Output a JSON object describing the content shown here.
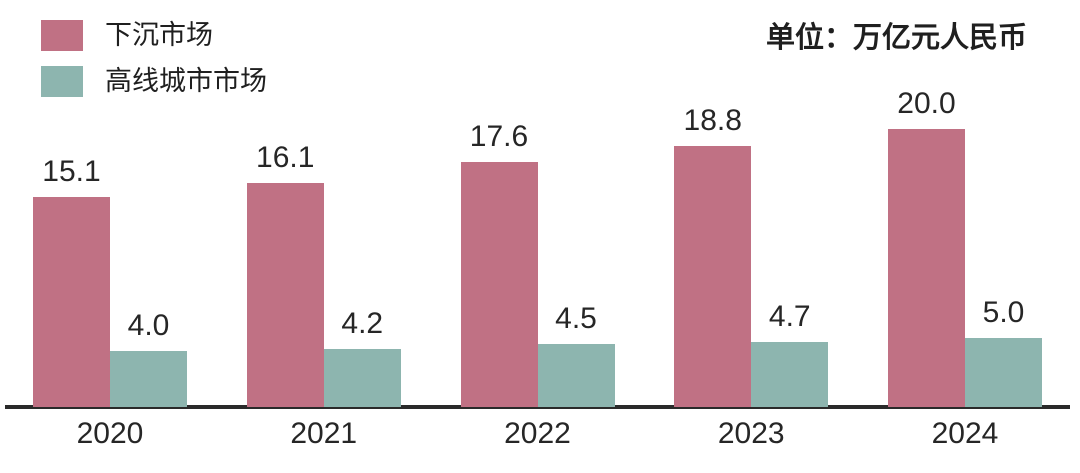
{
  "chart_data": {
    "type": "bar",
    "categories": [
      "2020",
      "2021",
      "2022",
      "2023",
      "2024"
    ],
    "series": [
      {
        "name": "下沉市场",
        "color": "#c07184",
        "values": [
          15.1,
          16.1,
          17.6,
          18.8,
          20.0
        ]
      },
      {
        "name": "高线城市市场",
        "color": "#8db5af",
        "values": [
          4.0,
          4.2,
          4.5,
          4.7,
          5.0
        ]
      }
    ],
    "unit_label": "单位：万亿元人民币",
    "title": "",
    "xlabel": "",
    "ylabel": "",
    "ylim": [
      0,
      20
    ],
    "grid": false,
    "legend_position": "top-left",
    "value_labels": true,
    "value_decimals": 1,
    "axis_color": "#2a2a2a",
    "text_color": "#262626",
    "background_color": "#ffffff"
  }
}
